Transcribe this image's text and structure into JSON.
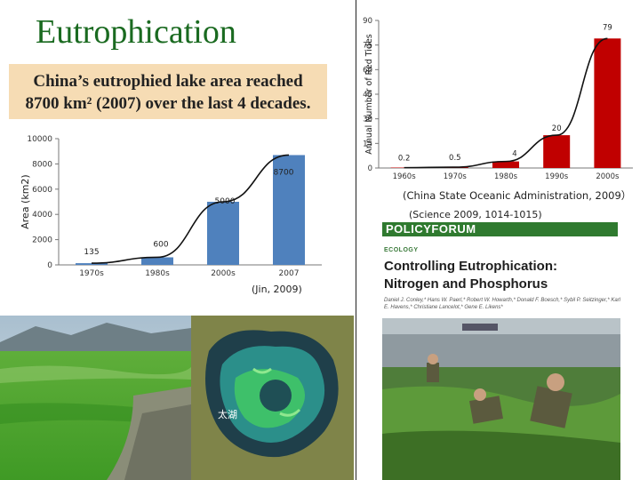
{
  "slide": {
    "title": "Eutrophication",
    "subtitle_line1": "China’s eutrophied lake area reached",
    "subtitle_line2": "8700 km² (2007) over the last 4 decades.",
    "lake_chart_ref": "(Jin, 2009)",
    "red_tide_ref": "(China State Oceanic Administration, 2009）",
    "science_ref": "(Science 2009, 1014-1015)",
    "colors": {
      "title": "#1a6a20",
      "subtitle_bg": "#f6dcb4",
      "bar_blue": "#4f81bd",
      "bar_red": "#c00000",
      "policy_green": "#2f7a2f"
    }
  },
  "article": {
    "banner": "POLICYFORUM",
    "section": "ECOLOGY",
    "title_line1": "Controlling Eutrophication:",
    "title_line2": "Nitrogen and Phosphorus",
    "authors": "Daniel J. Conley,* Hans W. Paerl,* Robert W. Howarth,* Donald F. Boesch,* Sybil P. Seitzinger,* Karl E. Havens,* Christiane Lancelot,* Gene E. Likens*"
  },
  "photos": {
    "left": "green algae shoreline photo",
    "middle": "satellite image of lake",
    "middle_label": "太湖",
    "right": "soldiers clearing algae photo"
  },
  "chart_data": [
    {
      "type": "bar",
      "categories": [
        "1970s",
        "1980s",
        "2000s",
        "2007"
      ],
      "values": [
        135,
        600,
        5000,
        8700
      ],
      "data_labels": [
        "135",
        "600",
        "5000",
        "8700"
      ],
      "ylabel": "Area (km2)",
      "yticks": [
        "0",
        "2000",
        "4000",
        "6000",
        "8000",
        "10000"
      ],
      "ylim": [
        0,
        10000
      ],
      "trend_line": true
    },
    {
      "type": "bar",
      "categories": [
        "1960s",
        "1970s",
        "1980s",
        "1990s",
        "2000s"
      ],
      "values": [
        0.2,
        0.5,
        4,
        20,
        79
      ],
      "data_labels": [
        "0.2",
        "0.5",
        "4",
        "20",
        "79"
      ],
      "ylabel": "Annual Number of Red Tides",
      "yticks": [
        "0",
        "15",
        "30",
        "45",
        "60",
        "75",
        "90"
      ],
      "ylim": [
        0,
        90
      ],
      "trend_line": true
    }
  ]
}
